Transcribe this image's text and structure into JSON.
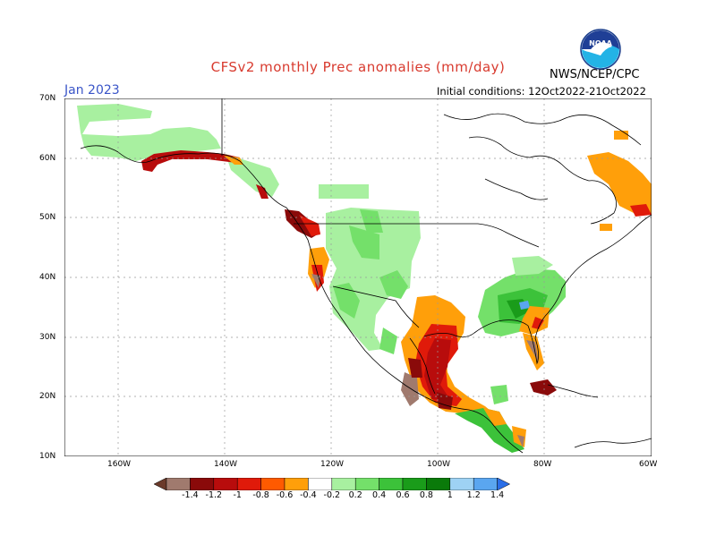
{
  "header": {
    "title": "CFSv2 monthly Prec anomalies (mm/day)",
    "month": "Jan 2023",
    "init_conditions": "Initial conditions: 12Oct2022-21Oct2022",
    "agency": "NWS/NCEP/CPC",
    "logo_text": "NOAA"
  },
  "axes": {
    "lat_labels": [
      "70N",
      "60N",
      "50N",
      "40N",
      "30N",
      "20N",
      "10N"
    ],
    "lon_labels": [
      "160W",
      "140W",
      "120W",
      "100W",
      "80W",
      "60W"
    ]
  },
  "colorbar": {
    "labels": [
      "-1.4",
      "-1.2",
      "-1",
      "-0.8",
      "-0.6",
      "-0.4",
      "-0.2",
      "0.2",
      "0.4",
      "0.6",
      "0.8",
      "1",
      "1.2",
      "1.4"
    ],
    "colors": [
      "#6b3a2a",
      "#a07a6e",
      "#8a0a0a",
      "#b80c0c",
      "#e01a0a",
      "#ff5a00",
      "#ff9f0a",
      "#ffffff",
      "#a8f0a0",
      "#74e06a",
      "#3cc23a",
      "#1a9c1a",
      "#0a7a0a",
      "#9ed2f4",
      "#5aa6f0",
      "#2a6ee8"
    ]
  },
  "legend_colors": {
    "dry_strong": "#b80c0c",
    "dry_mod": "#ff9f0a",
    "wet_light": "#a8f0a0",
    "wet_mod": "#3cc23a"
  }
}
